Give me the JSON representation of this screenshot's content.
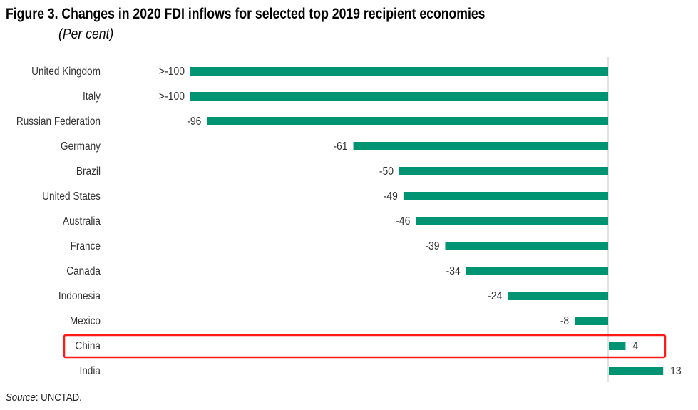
{
  "chart_data": {
    "type": "bar",
    "orientation": "horizontal",
    "title": "Figure 3. Changes in 2020 FDI inflows for selected top 2019 recipient economies",
    "subtitle": "(Per cent)",
    "categories": [
      "United Kingdom",
      "Italy",
      "Russian Federation",
      "Germany",
      "Brazil",
      "United States",
      "Australia",
      "France",
      "Canada",
      "Indonesia",
      "Mexico",
      "China",
      "India"
    ],
    "values": [
      -100,
      -100,
      -96,
      -61,
      -50,
      -49,
      -46,
      -39,
      -34,
      -24,
      -8,
      4,
      13
    ],
    "data_labels": [
      ">-100",
      ">-100",
      "-96",
      "-61",
      "-50",
      "-49",
      "-46",
      "-39",
      "-34",
      "-24",
      "-8",
      "4",
      "13"
    ],
    "xlim": [
      -100,
      13
    ],
    "highlighted_category": "China",
    "grid": false,
    "xlabel": "",
    "ylabel": ""
  },
  "source_label": "Source",
  "source_text": ": UNCTAD.",
  "colors": {
    "bar": "#009473",
    "highlight": "#ff1a1a",
    "axis": "#d9d9d9"
  }
}
